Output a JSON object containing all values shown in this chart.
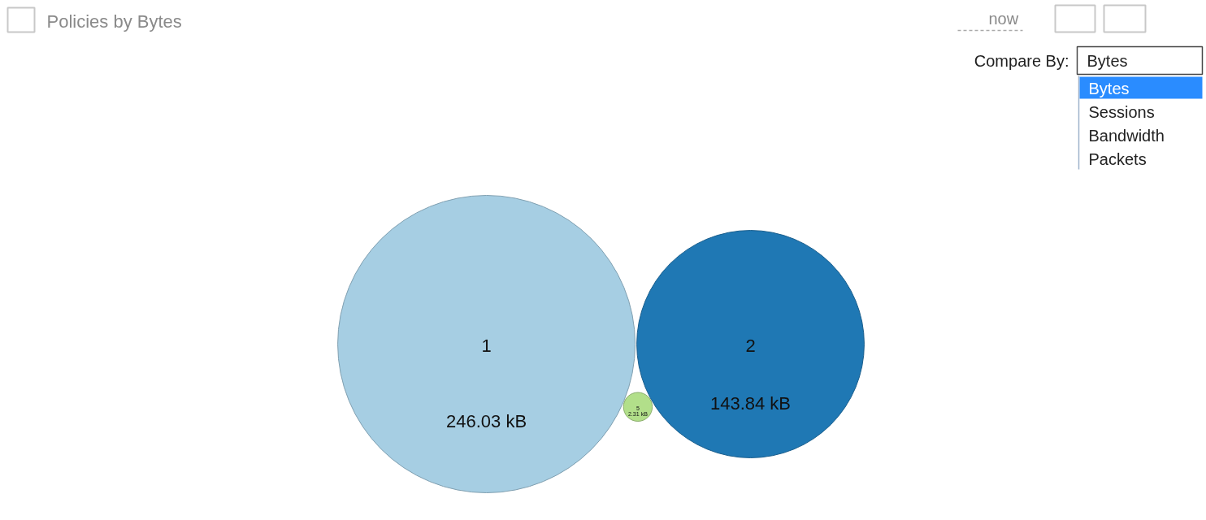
{
  "chart_data": {
    "type": "other",
    "title": "Policies by Bytes",
    "categories": [
      "1",
      "2",
      "5"
    ],
    "values": [
      246.03,
      143.84,
      2.31
    ],
    "value_labels": [
      "246.03 kB",
      "143.84 kB",
      "2.31 kB"
    ],
    "colors": [
      "#a6cee3",
      "#1f78b4",
      "#b2df8a"
    ],
    "annotations": [
      "now",
      "Compare By:",
      "Bytes",
      "Bytes",
      "Sessions",
      "Bandwidth",
      "Packets"
    ]
  }
}
